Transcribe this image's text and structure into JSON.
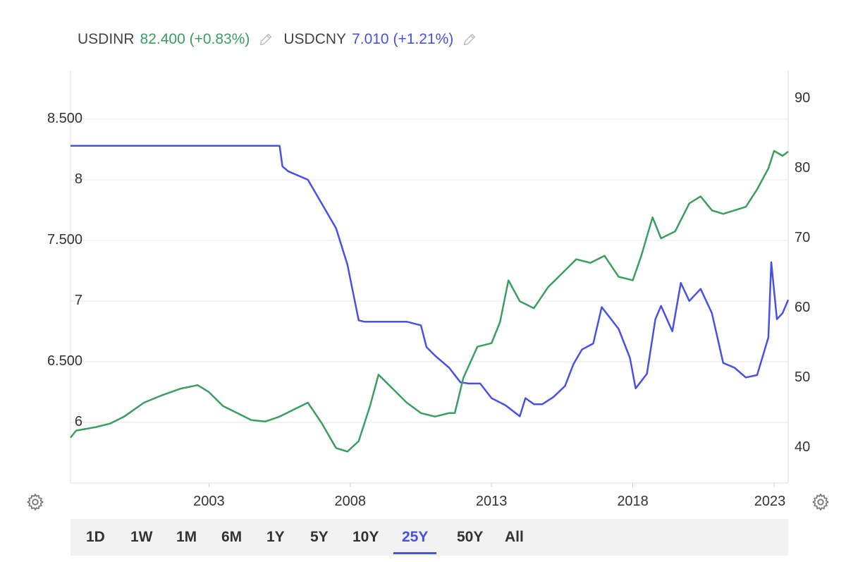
{
  "legend": {
    "series1": {
      "symbol": "USDINR",
      "value": "82.400 (+0.83%)",
      "color": "#3a9e61"
    },
    "series2": {
      "symbol": "USDCNY",
      "value": "7.010 (+1.21%)",
      "color": "#4850e6"
    }
  },
  "left_axis_ticks": [
    "8.500",
    "8",
    "7.500",
    "7",
    "6.500",
    "6"
  ],
  "right_axis_ticks": [
    "90",
    "80",
    "70",
    "60",
    "50",
    "40"
  ],
  "x_axis_ticks": [
    "2003",
    "2008",
    "2013",
    "2018",
    "2023"
  ],
  "range_buttons": [
    "1D",
    "1W",
    "1M",
    "6M",
    "1Y",
    "5Y",
    "10Y",
    "25Y",
    "50Y",
    "All"
  ],
  "active_range": "25Y",
  "icons": {
    "gear": "gear-icon",
    "pencil": "pencil-icon"
  },
  "chart_data": {
    "type": "line",
    "x_range": [
      1998.1,
      2023.5
    ],
    "y_left": {
      "series": "USDCNY",
      "ylim": [
        5.5,
        8.9
      ],
      "ticks": [
        6,
        6.5,
        7,
        7.5,
        8,
        8.5
      ]
    },
    "y_right": {
      "series": "USDINR",
      "ylim": [
        35,
        94
      ],
      "ticks": [
        40,
        50,
        60,
        70,
        80,
        90
      ]
    },
    "grid": "horizontal",
    "series": [
      {
        "name": "USDCNY",
        "axis": "left",
        "color": "#4850e6",
        "x": [
          1998.1,
          2001.5,
          2005.5,
          2005.6,
          2005.8,
          2006.5,
          2007.0,
          2007.5,
          2007.9,
          2008.3,
          2008.5,
          2008.8,
          2009.5,
          2010.0,
          2010.5,
          2010.7,
          2011.0,
          2011.5,
          2011.9,
          2012.2,
          2012.6,
          2013.0,
          2013.5,
          2014.0,
          2014.2,
          2014.5,
          2014.8,
          2015.2,
          2015.6,
          2015.9,
          2016.2,
          2016.6,
          2016.9,
          2017.2,
          2017.5,
          2017.9,
          2018.1,
          2018.5,
          2018.8,
          2019.0,
          2019.4,
          2019.7,
          2020.0,
          2020.4,
          2020.8,
          2021.2,
          2021.6,
          2022.0,
          2022.4,
          2022.8,
          2022.9,
          2023.1,
          2023.3,
          2023.5
        ],
        "y": [
          8.28,
          8.28,
          8.28,
          8.11,
          8.07,
          8.0,
          7.8,
          7.6,
          7.3,
          6.84,
          6.83,
          6.83,
          6.83,
          6.83,
          6.8,
          6.62,
          6.55,
          6.45,
          6.33,
          6.32,
          6.32,
          6.2,
          6.14,
          6.05,
          6.2,
          6.15,
          6.15,
          6.21,
          6.3,
          6.48,
          6.6,
          6.65,
          6.95,
          6.86,
          6.77,
          6.53,
          6.28,
          6.4,
          6.85,
          6.96,
          6.75,
          7.15,
          7.0,
          7.1,
          6.9,
          6.49,
          6.45,
          6.37,
          6.39,
          6.7,
          7.32,
          6.85,
          6.9,
          7.01
        ]
      },
      {
        "name": "USDINR",
        "axis": "right",
        "color": "#3a9e61",
        "x": [
          1998.1,
          1998.3,
          1999.0,
          1999.5,
          2000.0,
          2000.7,
          2001.3,
          2002.0,
          2002.6,
          2003.0,
          2003.5,
          2004.0,
          2004.5,
          2005.0,
          2005.5,
          2006.0,
          2006.5,
          2007.0,
          2007.5,
          2007.9,
          2008.3,
          2008.7,
          2009.0,
          2009.5,
          2010.0,
          2010.5,
          2011.0,
          2011.5,
          2011.7,
          2012.0,
          2012.5,
          2013.0,
          2013.3,
          2013.6,
          2014.0,
          2014.5,
          2015.0,
          2015.5,
          2016.0,
          2016.5,
          2017.0,
          2017.5,
          2018.0,
          2018.3,
          2018.7,
          2019.0,
          2019.5,
          2020.0,
          2020.4,
          2020.8,
          2021.2,
          2021.6,
          2022.0,
          2022.4,
          2022.8,
          2023.0,
          2023.3,
          2023.5
        ],
        "y": [
          41.5,
          42.5,
          43.0,
          43.5,
          44.5,
          46.5,
          47.5,
          48.5,
          49.0,
          48.0,
          46.0,
          45.0,
          44.0,
          43.8,
          44.5,
          45.5,
          46.5,
          43.5,
          40.0,
          39.5,
          41.0,
          46.0,
          50.5,
          48.5,
          46.5,
          45.0,
          44.5,
          45.0,
          45.0,
          50.0,
          54.5,
          55.0,
          58.0,
          64.0,
          61.0,
          60.0,
          63.0,
          65.0,
          67.0,
          66.5,
          67.5,
          64.5,
          64.0,
          67.5,
          73.0,
          70.0,
          71.0,
          75.0,
          76.0,
          74.0,
          73.5,
          74.0,
          74.5,
          77.0,
          80.0,
          82.5,
          81.8,
          82.4
        ]
      }
    ]
  }
}
